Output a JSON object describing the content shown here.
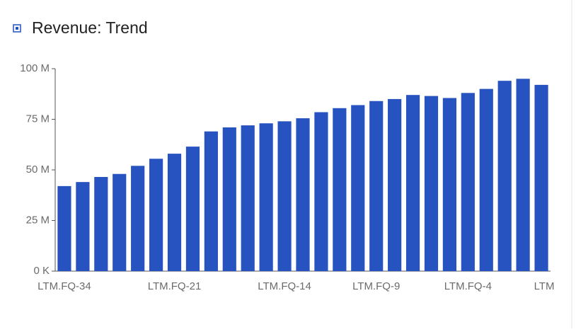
{
  "chart_data": {
    "type": "bar",
    "title": "Revenue: Trend",
    "categories": [
      "LTM.FQ-34",
      null,
      null,
      null,
      null,
      null,
      "LTM.FQ-21",
      null,
      null,
      null,
      null,
      null,
      "LTM.FQ-14",
      null,
      null,
      null,
      null,
      "LTM.FQ-9",
      null,
      null,
      null,
      null,
      "LTM.FQ-4",
      null,
      null,
      null,
      "LTM"
    ],
    "values": [
      42,
      44,
      46.5,
      48,
      52,
      55.5,
      58,
      61.5,
      69,
      71,
      72,
      73,
      74,
      75.5,
      78.5,
      80.5,
      82,
      84,
      85,
      87,
      86.5,
      85.5,
      88,
      90,
      94,
      95,
      92
    ],
    "color": "#2653c0",
    "ylim": [
      0,
      100
    ],
    "yticks": [
      {
        "value": 0,
        "label": "0 K"
      },
      {
        "value": 25,
        "label": "25 M"
      },
      {
        "value": 50,
        "label": "50 M"
      },
      {
        "value": 75,
        "label": "75 M"
      },
      {
        "value": 100,
        "label": "100 M"
      }
    ]
  }
}
